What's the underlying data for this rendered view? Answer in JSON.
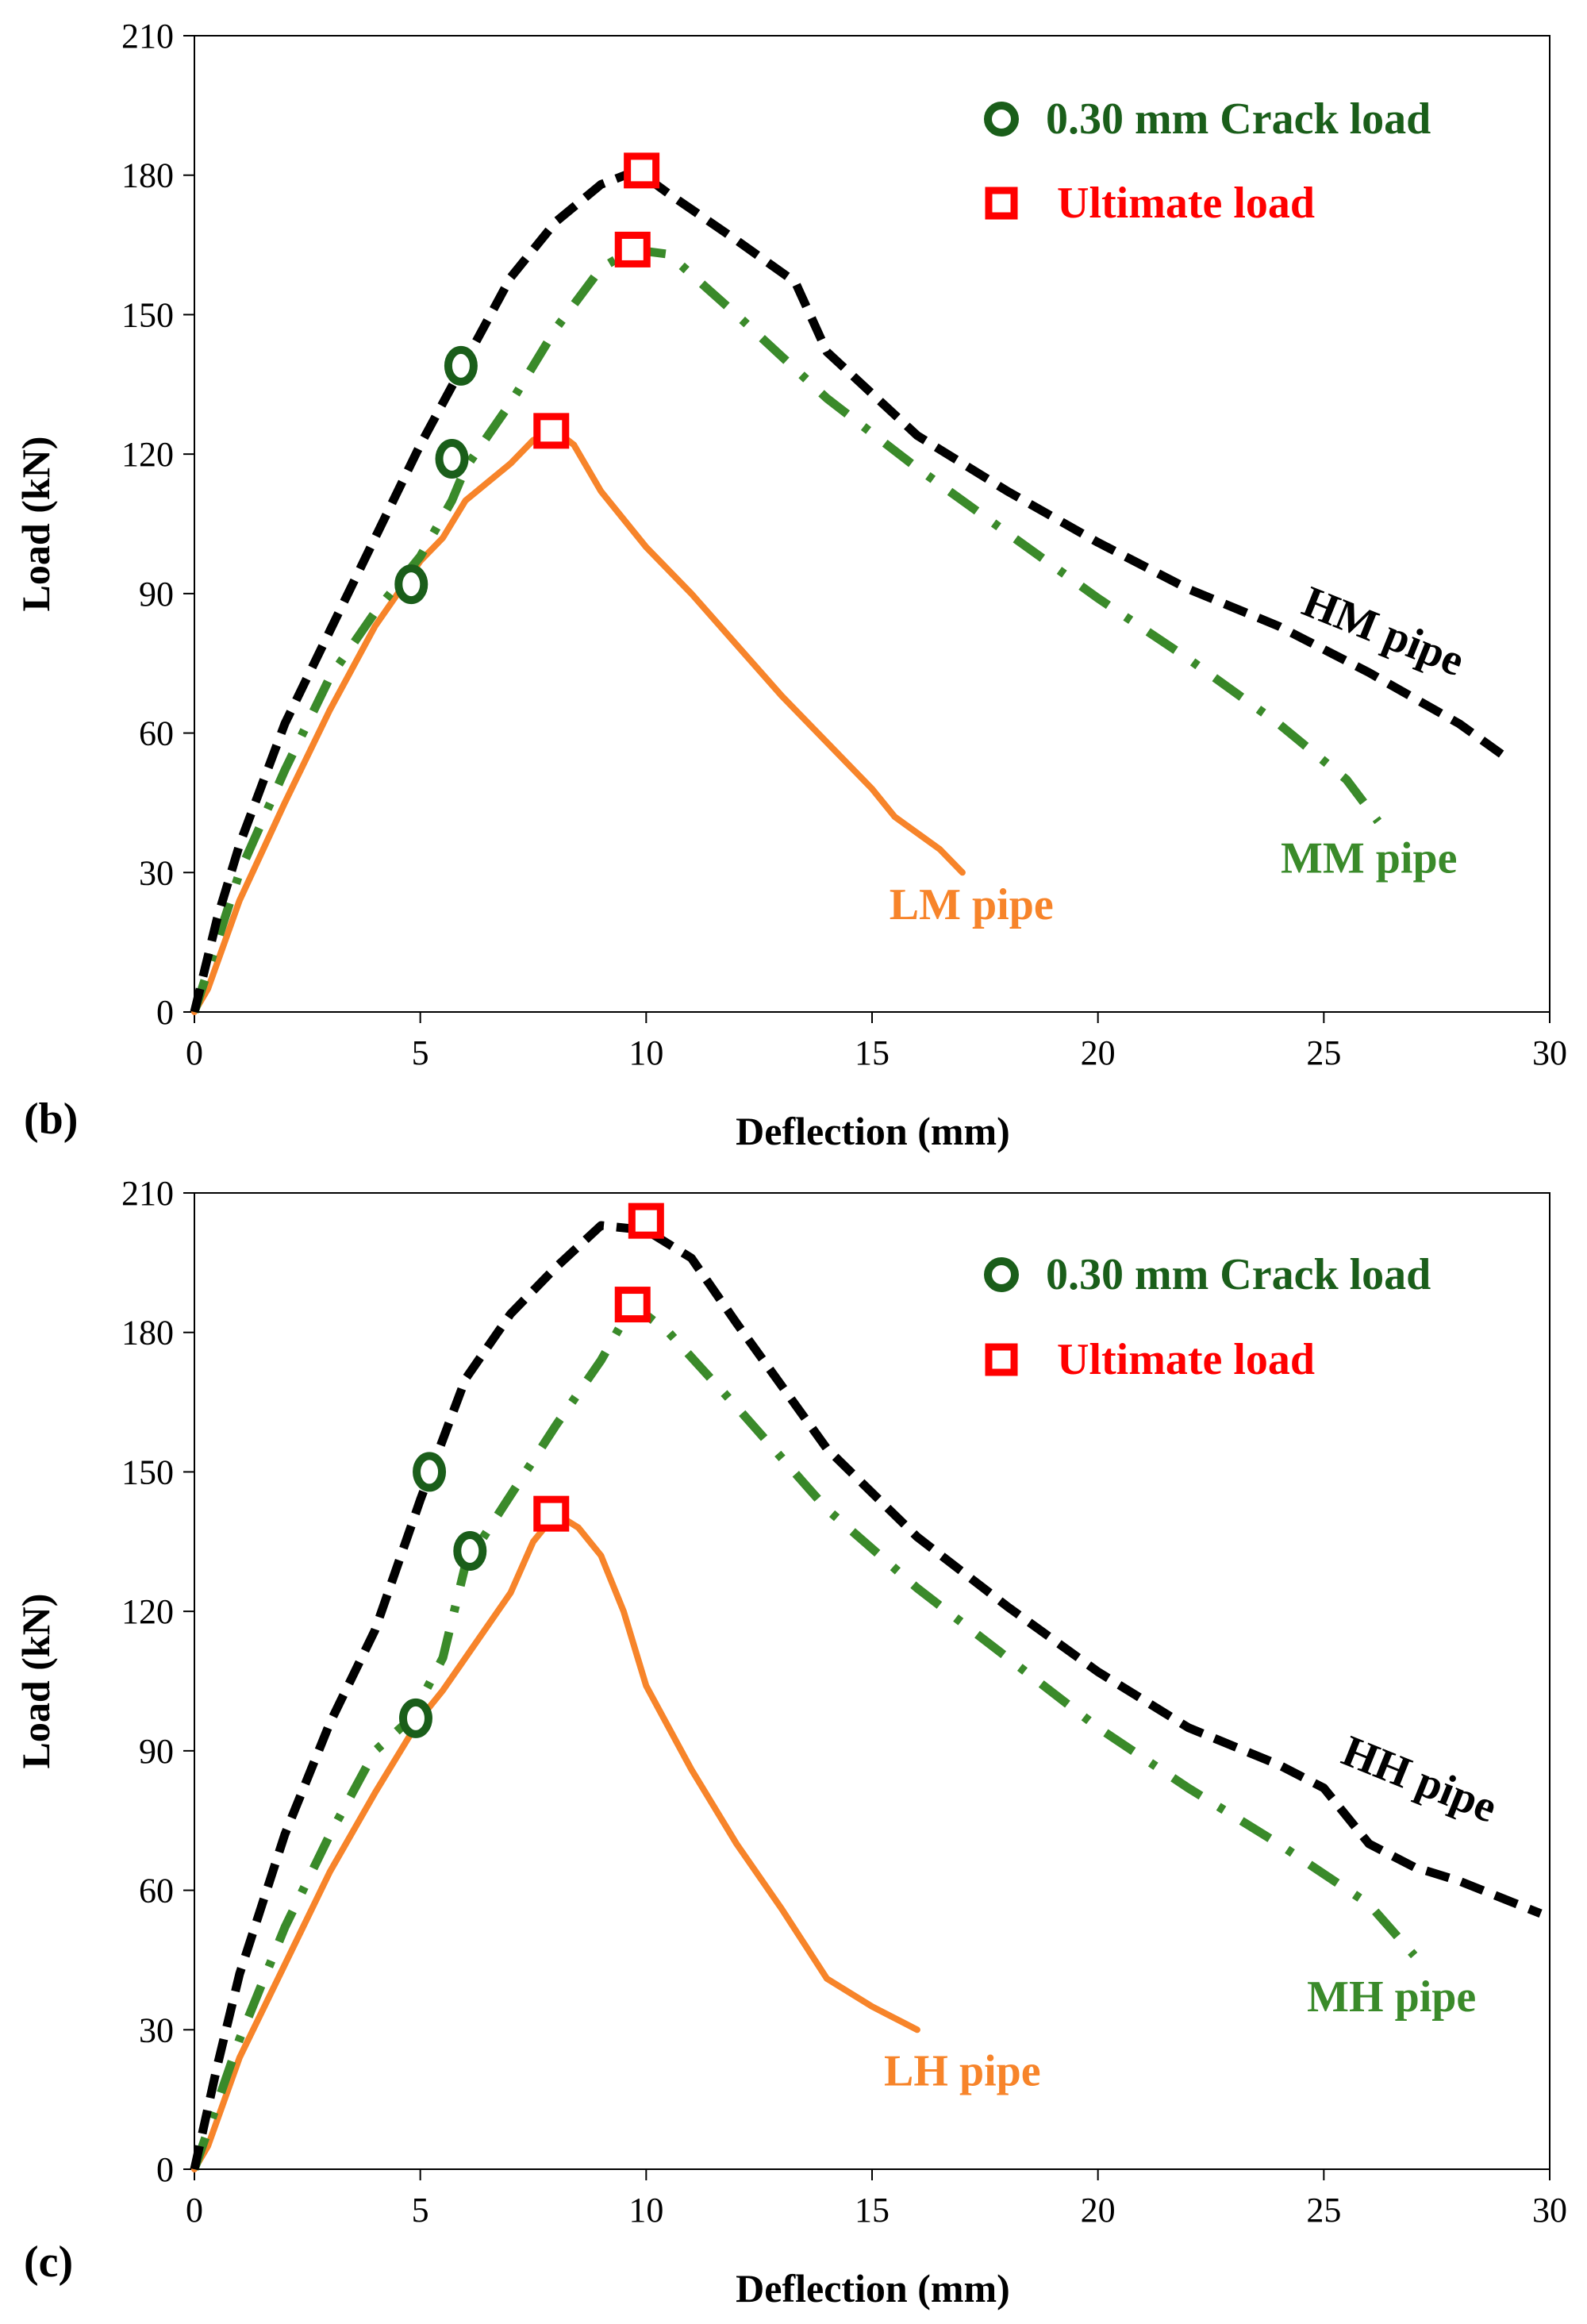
{
  "chart_data": [
    {
      "type": "line",
      "panel_label": "(b)",
      "xlabel": "Deflection (mm)",
      "ylabel": "Load (kN)",
      "xlim": [
        0,
        30
      ],
      "ylim": [
        0,
        210
      ],
      "xticks": [
        "0",
        "5",
        "10",
        "15",
        "20",
        "25",
        "30"
      ],
      "yticks": [
        "0",
        "30",
        "60",
        "90",
        "120",
        "150",
        "180",
        "210"
      ],
      "legend": [
        {
          "label": "0.30 mm Crack load",
          "marker": "circle",
          "color": "#1a5e1a"
        },
        {
          "label": "Ultimate load",
          "marker": "square",
          "color": "#ff0000"
        }
      ],
      "series": [
        {
          "name": "HM pipe",
          "color": "#000000",
          "style": "dashed",
          "label_pos": [
            26.2,
            79
          ],
          "label_rotate": 22,
          "x": [
            0,
            0.5,
            1,
            2,
            3,
            4,
            5,
            6,
            7,
            8,
            9,
            9.8,
            10.5,
            12,
            13.3,
            14,
            15,
            16,
            18,
            20,
            22,
            24,
            26,
            28,
            29
          ],
          "y": [
            0,
            20,
            36,
            62,
            82,
            102,
            122,
            140,
            158,
            170,
            178,
            181,
            176,
            166,
            157,
            142,
            133,
            124,
            112,
            101,
            91,
            83,
            73,
            62,
            55
          ]
        },
        {
          "name": "MM pipe",
          "color": "#3a8a2a",
          "style": "dashdot",
          "label_pos": [
            26.0,
            30
          ],
          "label_rotate": 0,
          "x": [
            0,
            0.5,
            1,
            2,
            3,
            4,
            5,
            5.7,
            6,
            7,
            8,
            9,
            9.7,
            10.5,
            12,
            14,
            16,
            18,
            20,
            22,
            24,
            25.5,
            26.2
          ],
          "y": [
            0,
            15,
            30,
            52,
            72,
            86,
            98,
            110,
            117,
            131,
            147,
            160,
            164,
            163,
            150,
            132,
            117,
            103,
            89,
            76,
            62,
            50,
            41
          ]
        },
        {
          "name": "LM pipe",
          "color": "#f7842a",
          "style": "solid",
          "label_pos": [
            17.2,
            20
          ],
          "label_rotate": 0,
          "x": [
            0,
            0.3,
            1,
            2,
            3,
            4,
            5,
            5.5,
            6,
            7,
            7.5,
            8,
            8.4,
            9,
            10,
            11,
            12,
            13,
            14,
            15,
            15.5,
            16.5,
            17
          ],
          "y": [
            0,
            5,
            24,
            45,
            65,
            83,
            97,
            102,
            110,
            118,
            123,
            125,
            122,
            112,
            100,
            90,
            79,
            68,
            58,
            48,
            42,
            35,
            30
          ]
        }
      ],
      "crack_points": [
        {
          "series": "HM pipe",
          "x": 5.9,
          "y": 139
        },
        {
          "series": "MM pipe",
          "x": 5.7,
          "y": 119
        },
        {
          "series": "LM pipe",
          "x": 4.8,
          "y": 92
        }
      ],
      "ultimate_points": [
        {
          "series": "HM pipe",
          "x": 9.9,
          "y": 181
        },
        {
          "series": "MM pipe",
          "x": 9.7,
          "y": 164
        },
        {
          "series": "LM pipe",
          "x": 7.9,
          "y": 125
        }
      ]
    },
    {
      "type": "line",
      "panel_label": "(c)",
      "xlabel": "Deflection (mm)",
      "ylabel": "Load (kN)",
      "xlim": [
        0,
        30
      ],
      "ylim": [
        0,
        210
      ],
      "xticks": [
        "0",
        "5",
        "10",
        "15",
        "20",
        "25",
        "30"
      ],
      "yticks": [
        "0",
        "30",
        "60",
        "90",
        "120",
        "150",
        "180",
        "210"
      ],
      "legend": [
        {
          "label": "0.30 mm Crack load",
          "marker": "circle",
          "color": "#1a5e1a"
        },
        {
          "label": "Ultimate load",
          "marker": "square",
          "color": "#ff0000"
        }
      ],
      "series": [
        {
          "name": "HH pipe",
          "color": "#000000",
          "style": "dashed",
          "label_pos": [
            27.0,
            81
          ],
          "label_rotate": 22,
          "x": [
            0,
            0.5,
            1,
            2,
            3,
            4,
            5,
            6,
            7,
            8,
            9,
            10,
            11,
            12,
            14,
            16,
            18,
            20,
            22,
            24,
            25,
            26,
            27,
            28,
            29.8
          ],
          "y": [
            0,
            22,
            42,
            72,
            96,
            116,
            144,
            170,
            184,
            194,
            203,
            202,
            196,
            182,
            155,
            136,
            121,
            107,
            95,
            87,
            82,
            70,
            65,
            62,
            55
          ]
        },
        {
          "name": "MH pipe",
          "color": "#3a8a2a",
          "style": "dashdot",
          "label_pos": [
            26.5,
            34
          ],
          "label_rotate": 0,
          "x": [
            0,
            0.5,
            1,
            2,
            3,
            4,
            4.8,
            5.5,
            6,
            7,
            8,
            9,
            9.7,
            10.5,
            12,
            14,
            16,
            18,
            20,
            22,
            24,
            26,
            27
          ],
          "y": [
            0,
            14,
            28,
            52,
            72,
            90,
            97,
            110,
            130,
            145,
            160,
            174,
            186,
            180,
            164,
            142,
            125,
            110,
            95,
            82,
            70,
            57,
            46
          ]
        },
        {
          "name": "LH pipe",
          "color": "#f7842a",
          "style": "solid",
          "label_pos": [
            17.0,
            18
          ],
          "label_rotate": 0,
          "x": [
            0,
            0.3,
            1,
            2,
            3,
            4,
            5,
            5.5,
            6,
            7,
            7.5,
            8,
            8.5,
            9,
            9.5,
            10,
            11,
            12,
            13,
            14,
            15,
            16
          ],
          "y": [
            0,
            5,
            24,
            44,
            64,
            81,
            97,
            103,
            110,
            124,
            135,
            141,
            138,
            132,
            120,
            104,
            86,
            70,
            56,
            41,
            35,
            30
          ]
        }
      ],
      "crack_points": [
        {
          "series": "HH pipe",
          "x": 5.2,
          "y": 150
        },
        {
          "series": "MH pipe",
          "x": 6.1,
          "y": 133
        },
        {
          "series": "LH pipe",
          "x": 4.9,
          "y": 97
        }
      ],
      "ultimate_points": [
        {
          "series": "HH pipe",
          "x": 10.0,
          "y": 204
        },
        {
          "series": "MH pipe",
          "x": 9.7,
          "y": 186
        },
        {
          "series": "LH pipe",
          "x": 7.9,
          "y": 141
        }
      ]
    }
  ]
}
